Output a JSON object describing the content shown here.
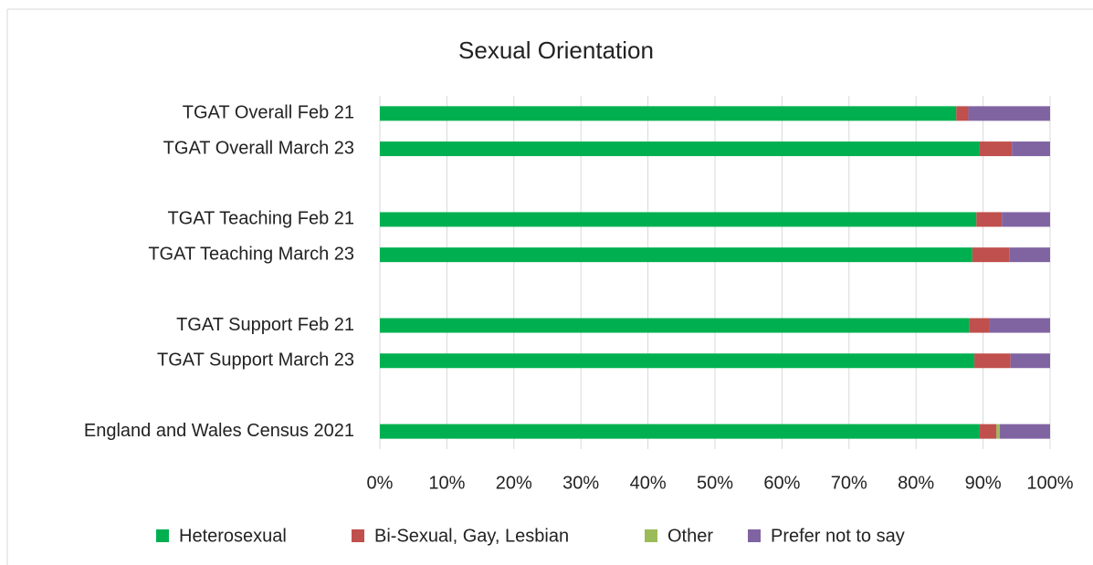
{
  "chart_data": {
    "type": "stacked_barh",
    "title": "Sexual Orientation",
    "categories": [
      "TGAT Overall Feb 21",
      "TGAT Overall March 23",
      null,
      "TGAT Teaching Feb 21",
      "TGAT Teaching March 23",
      null,
      "TGAT Support Feb 21",
      "TGAT Support March 23",
      null,
      "England and Wales Census 2021"
    ],
    "series": [
      {
        "name": "Heterosexual",
        "color": "#00b050",
        "values": [
          86.0,
          89.5,
          null,
          89.0,
          88.4,
          null,
          87.9,
          88.7,
          null,
          89.5
        ]
      },
      {
        "name": "Bi-Sexual, Gay, Lesbian",
        "color": "#c0504d",
        "values": [
          1.8,
          4.8,
          null,
          3.8,
          5.5,
          null,
          3.1,
          5.4,
          null,
          2.5
        ]
      },
      {
        "name": "Other",
        "color": "#9bbb59",
        "values": [
          0,
          0,
          null,
          0,
          0,
          null,
          0,
          0,
          null,
          0.5
        ]
      },
      {
        "name": "Prefer not to say",
        "color": "#8064a2",
        "values": [
          12.2,
          5.7,
          null,
          7.2,
          6.1,
          null,
          9.0,
          5.9,
          null,
          7.5
        ]
      }
    ],
    "xlim": [
      0,
      100
    ],
    "xticks": [
      {
        "value": 0,
        "label": "0%"
      },
      {
        "value": 10,
        "label": "10%"
      },
      {
        "value": 20,
        "label": "20%"
      },
      {
        "value": 30,
        "label": "30%"
      },
      {
        "value": 40,
        "label": "40%"
      },
      {
        "value": 50,
        "label": "50%"
      },
      {
        "value": 60,
        "label": "60%"
      },
      {
        "value": 70,
        "label": "70%"
      },
      {
        "value": 80,
        "label": "80%"
      },
      {
        "value": 90,
        "label": "90%"
      },
      {
        "value": 100,
        "label": "100%"
      }
    ],
    "grid": true,
    "legend": "bottom"
  }
}
